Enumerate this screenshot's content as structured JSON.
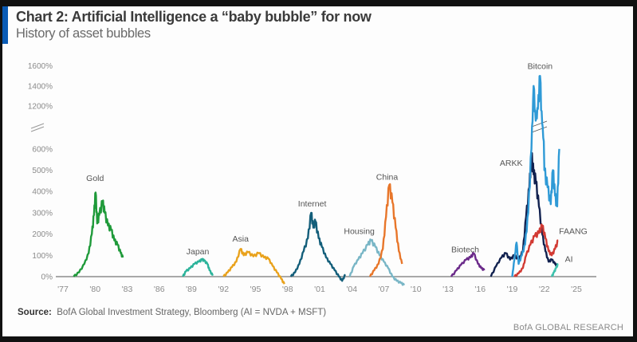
{
  "header": {
    "title": "Chart 2: Artificial Intelligence a “baby bubble” for now",
    "subtitle": "History of asset bubbles",
    "accent_color": "#0a5bb5"
  },
  "footer": {
    "source_label": "Source:",
    "source_text": "BofA Global Investment Strategy, Bloomberg (AI = NVDA + MSFT)",
    "brand": "BofA GLOBAL RESEARCH"
  },
  "chart_data": {
    "type": "line",
    "title": "Chart 2: Artificial Intelligence a “baby bubble” for now",
    "subtitle": "History of asset bubbles",
    "xlabel": "",
    "ylabel": "",
    "x_ticks": [
      "'77",
      "'80",
      "'83",
      "'86",
      "'89",
      "'92",
      "'95",
      "'98",
      "'01",
      "'04",
      "'07",
      "'10",
      "'13",
      "'16",
      "'19",
      "'22",
      "'25"
    ],
    "x_tick_years": [
      1977,
      1980,
      1983,
      1986,
      1989,
      1992,
      1995,
      1998,
      2001,
      2004,
      2007,
      2010,
      2013,
      2016,
      2019,
      2022,
      2025
    ],
    "y_ticks_lower": [
      "0%",
      "100%",
      "200%",
      "300%",
      "400%",
      "500%",
      "600%"
    ],
    "y_ticks_upper": [
      "1200%",
      "1400%",
      "1600%"
    ],
    "y_lower_values": [
      0,
      100,
      200,
      300,
      400,
      500,
      600
    ],
    "y_upper_values": [
      1200,
      1400,
      1600
    ],
    "y_axis_break": "between 600% and 1200%",
    "xlim": [
      1977,
      2025
    ],
    "grid": false,
    "legend": "inline labels",
    "series": [
      {
        "name": "Gold",
        "color": "#1f9a3a",
        "label_at": [
          1980,
          450
        ],
        "points": [
          [
            1978.0,
            0
          ],
          [
            1978.5,
            20
          ],
          [
            1979.0,
            60
          ],
          [
            1979.4,
            110
          ],
          [
            1979.7,
            200
          ],
          [
            1979.9,
            290
          ],
          [
            1980.05,
            395
          ],
          [
            1980.2,
            250
          ],
          [
            1980.4,
            290
          ],
          [
            1980.7,
            350
          ],
          [
            1980.9,
            300
          ],
          [
            1981.2,
            240
          ],
          [
            1981.5,
            220
          ],
          [
            1981.8,
            170
          ],
          [
            1982.1,
            150
          ],
          [
            1982.4,
            110
          ],
          [
            1982.6,
            90
          ]
        ]
      },
      {
        "name": "Japan",
        "color": "#2bb39a",
        "label_at": [
          1989.6,
          105
        ],
        "points": [
          [
            1988.2,
            0
          ],
          [
            1988.5,
            25
          ],
          [
            1988.9,
            40
          ],
          [
            1989.3,
            60
          ],
          [
            1989.7,
            70
          ],
          [
            1990.0,
            80
          ],
          [
            1990.2,
            75
          ],
          [
            1990.5,
            60
          ],
          [
            1990.7,
            30
          ],
          [
            1991.0,
            5
          ]
        ]
      },
      {
        "name": "Asia",
        "color": "#e9a21c",
        "label_at": [
          1993.6,
          165
        ],
        "points": [
          [
            1992.0,
            0
          ],
          [
            1992.4,
            20
          ],
          [
            1992.8,
            45
          ],
          [
            1993.2,
            70
          ],
          [
            1993.6,
            130
          ],
          [
            1993.9,
            100
          ],
          [
            1994.3,
            115
          ],
          [
            1994.8,
            95
          ],
          [
            1995.3,
            110
          ],
          [
            1995.8,
            90
          ],
          [
            1996.2,
            85
          ],
          [
            1996.6,
            50
          ],
          [
            1997.0,
            20
          ],
          [
            1997.4,
            -10
          ],
          [
            1997.7,
            -35
          ]
        ]
      },
      {
        "name": "Internet",
        "color": "#135e7a",
        "label_at": [
          2000.3,
          330
        ],
        "points": [
          [
            1998.3,
            0
          ],
          [
            1998.7,
            20
          ],
          [
            1999.1,
            60
          ],
          [
            1999.5,
            120
          ],
          [
            1999.9,
            180
          ],
          [
            2000.2,
            300
          ],
          [
            2000.4,
            230
          ],
          [
            2000.6,
            260
          ],
          [
            2000.9,
            180
          ],
          [
            2001.2,
            140
          ],
          [
            2001.6,
            90
          ],
          [
            2002.0,
            60
          ],
          [
            2002.4,
            30
          ],
          [
            2002.8,
            0
          ],
          [
            2003.1,
            -20
          ],
          [
            2003.4,
            10
          ]
        ]
      },
      {
        "name": "Housing",
        "color": "#79b6c6",
        "label_at": [
          2004.7,
          200
        ],
        "points": [
          [
            2003.8,
            0
          ],
          [
            2004.2,
            50
          ],
          [
            2004.6,
            80
          ],
          [
            2005.0,
            110
          ],
          [
            2005.5,
            150
          ],
          [
            2005.8,
            170
          ],
          [
            2006.2,
            140
          ],
          [
            2006.6,
            100
          ],
          [
            2007.0,
            70
          ],
          [
            2007.4,
            40
          ],
          [
            2007.8,
            0
          ],
          [
            2008.2,
            -20
          ],
          [
            2008.6,
            -30
          ],
          [
            2008.9,
            -40
          ]
        ]
      },
      {
        "name": "China",
        "color": "#e8762a",
        "label_at": [
          2007.3,
          455
        ],
        "points": [
          [
            2005.7,
            0
          ],
          [
            2006.1,
            30
          ],
          [
            2006.5,
            60
          ],
          [
            2006.9,
            130
          ],
          [
            2007.2,
            280
          ],
          [
            2007.5,
            430
          ],
          [
            2007.8,
            350
          ],
          [
            2008.1,
            230
          ],
          [
            2008.4,
            120
          ],
          [
            2008.7,
            60
          ]
        ]
      },
      {
        "name": "Biotech",
        "color": "#6b2a8a",
        "label_at": [
          2014.6,
          115
        ],
        "points": [
          [
            2013.3,
            0
          ],
          [
            2013.8,
            30
          ],
          [
            2014.2,
            55
          ],
          [
            2014.7,
            80
          ],
          [
            2015.1,
            90
          ],
          [
            2015.4,
            110
          ],
          [
            2015.8,
            60
          ],
          [
            2016.1,
            40
          ],
          [
            2016.4,
            30
          ]
        ]
      },
      {
        "name": "ARKK",
        "color": "#11214f",
        "label_at": [
          2018.9,
          520
        ],
        "points": [
          [
            2017.0,
            0
          ],
          [
            2017.5,
            50
          ],
          [
            2018.0,
            90
          ],
          [
            2018.4,
            110
          ],
          [
            2018.8,
            80
          ],
          [
            2019.2,
            100
          ],
          [
            2019.6,
            80
          ],
          [
            2020.0,
            120
          ],
          [
            2020.3,
            280
          ],
          [
            2020.6,
            420
          ],
          [
            2020.8,
            570
          ],
          [
            2021.0,
            480
          ],
          [
            2021.2,
            450
          ],
          [
            2021.5,
            330
          ],
          [
            2021.8,
            200
          ],
          [
            2022.1,
            120
          ],
          [
            2022.4,
            70
          ],
          [
            2022.7,
            80
          ],
          [
            2023.0,
            60
          ],
          [
            2023.2,
            50
          ]
        ]
      },
      {
        "name": "Bitcoin",
        "color": "#2f9ad6",
        "label_at": [
          2021.6,
          1570
        ],
        "points": [
          [
            2019.0,
            0
          ],
          [
            2019.2,
            80
          ],
          [
            2019.4,
            160
          ],
          [
            2019.6,
            60
          ],
          [
            2019.9,
            100
          ],
          [
            2020.2,
            150
          ],
          [
            2020.5,
            300
          ],
          [
            2020.8,
            600
          ],
          [
            2021.0,
            1400
          ],
          [
            2021.2,
            950
          ],
          [
            2021.4,
            1150
          ],
          [
            2021.6,
            1500
          ],
          [
            2021.8,
            900
          ],
          [
            2022.0,
            500
          ],
          [
            2022.3,
            420
          ],
          [
            2022.6,
            340
          ],
          [
            2022.8,
            500
          ],
          [
            2023.0,
            380
          ],
          [
            2023.2,
            330
          ],
          [
            2023.4,
            600
          ]
        ]
      },
      {
        "name": "FAANG",
        "color": "#d23a33",
        "label_at": [
          2024.7,
          200
        ],
        "points": [
          [
            2019.2,
            0
          ],
          [
            2019.6,
            15
          ],
          [
            2020.0,
            40
          ],
          [
            2020.3,
            100
          ],
          [
            2020.7,
            150
          ],
          [
            2021.1,
            190
          ],
          [
            2021.5,
            205
          ],
          [
            2021.8,
            240
          ],
          [
            2022.1,
            180
          ],
          [
            2022.4,
            120
          ],
          [
            2022.7,
            100
          ],
          [
            2023.0,
            130
          ],
          [
            2023.3,
            170
          ]
        ]
      },
      {
        "name": "AI",
        "color": "#3ec2ad",
        "label_at": [
          2024.3,
          70
        ],
        "points": [
          [
            2022.7,
            0
          ],
          [
            2022.9,
            20
          ],
          [
            2023.1,
            40
          ],
          [
            2023.3,
            60
          ]
        ]
      }
    ]
  }
}
